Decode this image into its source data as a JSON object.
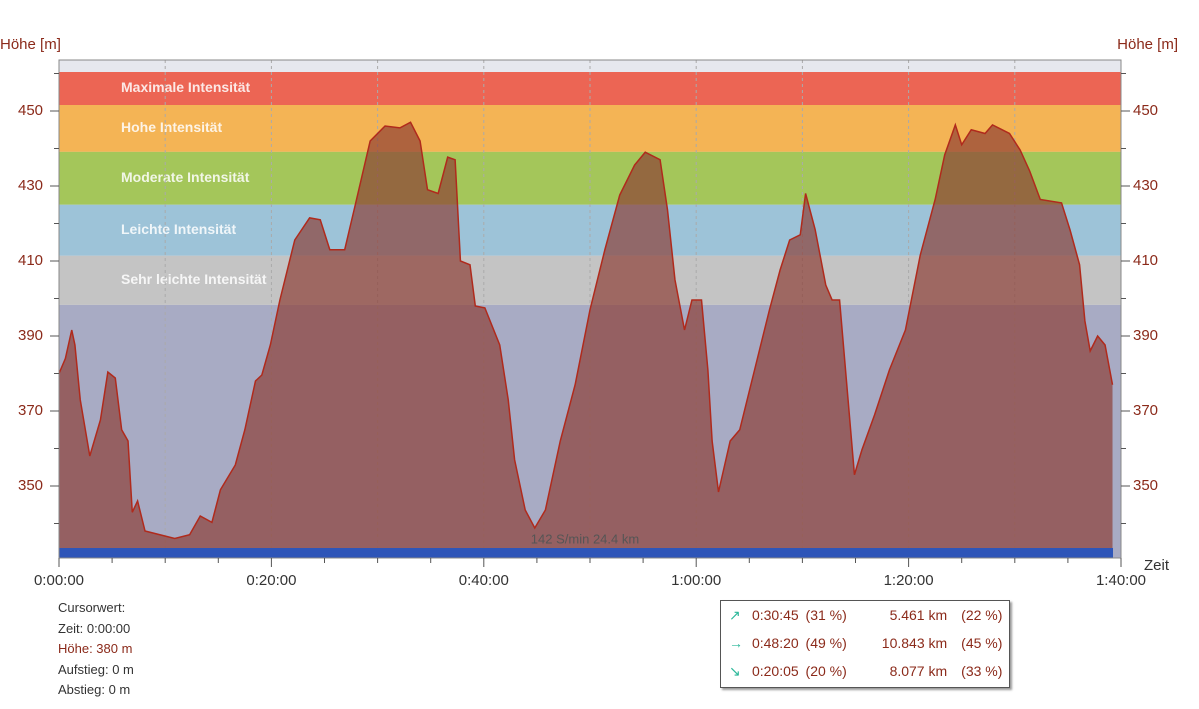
{
  "chart_data": {
    "type": "area",
    "y_label": "Höhe  [m]",
    "y2_label": "Höhe  [m]",
    "x_label": "Zeit",
    "annotation": "142 S/min 24.4 km",
    "line_color": "#b02a1c",
    "fill_color": "#8c3c34",
    "xlim": [
      0,
      100
    ],
    "ylim": [
      330.8,
      463.6
    ],
    "xticks": [
      {
        "value": 0,
        "label": "0:00:00"
      },
      {
        "value": 20,
        "label": "0:20:00"
      },
      {
        "value": 40,
        "label": "0:40:00"
      },
      {
        "value": 60,
        "label": "1:00:00"
      },
      {
        "value": 80,
        "label": "1:20:00"
      },
      {
        "value": 100,
        "label": "1:40:00"
      }
    ],
    "xminorticks": [
      5,
      10,
      15,
      25,
      30,
      35,
      45,
      50,
      55,
      65,
      70,
      75,
      85,
      90,
      95
    ],
    "xgrid": [
      10,
      20,
      30,
      40,
      50,
      60,
      70,
      80,
      90
    ],
    "yticks": [
      350,
      370,
      390,
      410,
      430,
      450
    ],
    "yminorticks": [
      340,
      360,
      380,
      400,
      420,
      440,
      460
    ],
    "zones": [
      {
        "name": "Maximale Intensität",
        "color": "#ec6554",
        "from": 451.6,
        "to": 460.4
      },
      {
        "name": "Hohe Intensität",
        "color": "#f4b455",
        "from": 439.1,
        "to": 451.6
      },
      {
        "name": "Moderate Intensität",
        "color": "#a4c65a",
        "from": 425,
        "to": 439.1
      },
      {
        "name": "Leichte Intensität",
        "color": "#9dc3d8",
        "from": 411.4,
        "to": 425
      },
      {
        "name": "Sehr leichte Intensität",
        "color": "#c4c4c4",
        "from": 398.3,
        "to": 411.4
      }
    ],
    "x": [
      0,
      0.6,
      1.2,
      1.5,
      2,
      2.9,
      3.9,
      4.6,
      5.3,
      5.9,
      6.5,
      6.9,
      7.4,
      8.1,
      9.5,
      10.9,
      12.3,
      13.3,
      14.4,
      15.2,
      16.6,
      17.5,
      18.5,
      19.1,
      19.9,
      20.8,
      22.2,
      23.6,
      24.6,
      25.5,
      26.9,
      27.9,
      29.3,
      30.7,
      32.1,
      33.1,
      34,
      34.7,
      35.7,
      36.6,
      37.3,
      37.8,
      38.7,
      39.2,
      40.1,
      41.5,
      42.3,
      42.9,
      43.9,
      44.8,
      45.8,
      47.2,
      48.6,
      50,
      51.4,
      52.8,
      54.2,
      55.2,
      56.6,
      57.3,
      58,
      58.9,
      59.6,
      60.5,
      61.1,
      61.5,
      62.1,
      63.2,
      64.1,
      65.5,
      66.9,
      67.9,
      68.8,
      69.8,
      70.3,
      71.2,
      72.2,
      72.8,
      73.5,
      74.3,
      74.9,
      75.6,
      76.8,
      78.2,
      79.7,
      81.1,
      82.5,
      83.4,
      84.4,
      85,
      85.9,
      87.2,
      87.9,
      89.5,
      90.5,
      91.4,
      92.4,
      94.4,
      95.2,
      96.1,
      96.6,
      97.1,
      97.8,
      98.5,
      99.2
    ],
    "values": [
      380,
      384,
      391.6,
      387.6,
      373,
      358,
      367.6,
      380.4,
      378.8,
      365,
      362,
      343,
      346,
      338,
      337,
      336,
      337,
      342,
      340.3,
      349,
      355.6,
      365,
      378,
      379.6,
      387.6,
      399.6,
      415.6,
      421.5,
      421,
      413,
      413,
      425,
      442,
      446,
      445.5,
      447,
      442,
      429,
      428,
      437.7,
      437,
      410,
      409,
      398,
      397.5,
      387.6,
      373,
      357,
      343.6,
      338.8,
      343.6,
      362,
      377,
      397,
      413,
      427.6,
      435.6,
      439,
      437,
      423.6,
      405,
      391.6,
      399.6,
      399.6,
      381,
      362,
      348.4,
      362,
      365,
      381,
      397,
      407.6,
      415.6,
      417,
      428,
      418.4,
      403.6,
      399.6,
      399.6,
      373,
      353,
      359.6,
      369,
      381,
      391.6,
      411.6,
      426.4,
      438.3,
      446.3,
      441,
      445,
      444,
      446.3,
      444,
      439.6,
      434,
      426.4,
      425.5,
      418.3,
      409,
      394,
      386,
      390,
      387.6,
      377
    ]
  },
  "cursor": {
    "title": "Cursorwert:",
    "time": "Zeit: 0:00:00",
    "height": "Höhe:  380 m",
    "ascent": "Aufstieg: 0 m",
    "descent": "Abstieg: 0 m"
  },
  "stats": [
    {
      "icon": "↗",
      "time": "0:30:45",
      "time_pct": "(31 %)",
      "distance": "5.461 km",
      "distance_pct": "(22 %)"
    },
    {
      "icon": "→",
      "time": "0:48:20",
      "time_pct": "(49 %)",
      "distance": "10.843 km",
      "distance_pct": "(45 %)"
    },
    {
      "icon": "↘",
      "time": "0:20:05",
      "time_pct": "(20 %)",
      "distance": "8.077 km",
      "distance_pct": "(33 %)"
    }
  ]
}
